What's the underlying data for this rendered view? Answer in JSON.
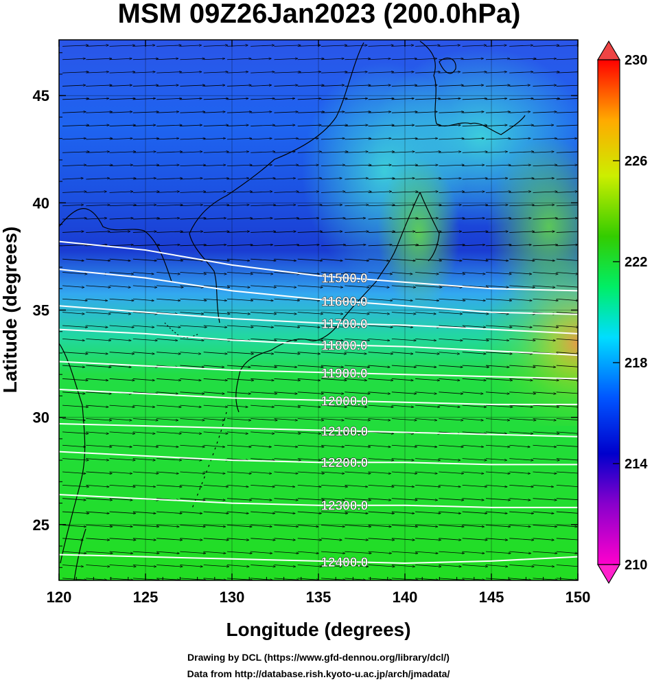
{
  "chart_data": {
    "type": "heatmap",
    "title": "MSM 09Z26Jan2023 (200.0hPa)",
    "xlabel": "Longitude (degrees)",
    "ylabel": "Latitude  (degrees)",
    "xlim": [
      120,
      150
    ],
    "ylim": [
      22.4,
      47.6
    ],
    "x_ticks": [
      120,
      125,
      130,
      135,
      140,
      145,
      150
    ],
    "y_ticks": [
      25,
      30,
      35,
      40,
      45
    ],
    "colorbar": {
      "range": [
        210,
        230
      ],
      "ticks": [
        210,
        214,
        218,
        222,
        226,
        230
      ],
      "colors": [
        "#ff00cc",
        "#8800cc",
        "#0000cc",
        "#0055ff",
        "#00ddff",
        "#00ee55",
        "#33cc00",
        "#ccee00",
        "#ffaa00",
        "#ff0000"
      ]
    },
    "contours": [
      {
        "label": "11500.0",
        "value": 11500,
        "lat_by_lon": [
          [
            120,
            38.2
          ],
          [
            125,
            37.8
          ],
          [
            130,
            37.1
          ],
          [
            135,
            36.6
          ],
          [
            140,
            36.3
          ],
          [
            145,
            36.0
          ],
          [
            150,
            35.9
          ]
        ]
      },
      {
        "label": "11600.0",
        "value": 11600,
        "lat_by_lon": [
          [
            120,
            36.9
          ],
          [
            125,
            36.5
          ],
          [
            130,
            35.9
          ],
          [
            135,
            35.5
          ],
          [
            140,
            35.2
          ],
          [
            145,
            34.9
          ],
          [
            150,
            34.8
          ]
        ]
      },
      {
        "label": "11700.0",
        "value": 11700,
        "lat_by_lon": [
          [
            120,
            35.2
          ],
          [
            125,
            34.9
          ],
          [
            130,
            34.6
          ],
          [
            135,
            34.4
          ],
          [
            140,
            34.3
          ],
          [
            145,
            34.1
          ],
          [
            150,
            33.9
          ]
        ]
      },
      {
        "label": "11800.0",
        "value": 11800,
        "lat_by_lon": [
          [
            120,
            34.1
          ],
          [
            125,
            33.9
          ],
          [
            130,
            33.6
          ],
          [
            135,
            33.4
          ],
          [
            140,
            33.3
          ],
          [
            145,
            33.1
          ],
          [
            150,
            32.9
          ]
        ]
      },
      {
        "label": "11900.0",
        "value": 11900,
        "lat_by_lon": [
          [
            120,
            32.6
          ],
          [
            125,
            32.4
          ],
          [
            130,
            32.2
          ],
          [
            135,
            32.1
          ],
          [
            140,
            32.0
          ],
          [
            145,
            31.9
          ],
          [
            150,
            31.8
          ]
        ]
      },
      {
        "label": "12000.0",
        "value": 12000,
        "lat_by_lon": [
          [
            120,
            31.3
          ],
          [
            125,
            31.1
          ],
          [
            130,
            30.9
          ],
          [
            135,
            30.8
          ],
          [
            140,
            30.7
          ],
          [
            145,
            30.6
          ],
          [
            150,
            30.6
          ]
        ]
      },
      {
        "label": "12100.0",
        "value": 12100,
        "lat_by_lon": [
          [
            120,
            29.7
          ],
          [
            125,
            29.6
          ],
          [
            130,
            29.5
          ],
          [
            135,
            29.4
          ],
          [
            140,
            29.3
          ],
          [
            145,
            29.2
          ],
          [
            150,
            29.1
          ]
        ]
      },
      {
        "label": "12200.0",
        "value": 12200,
        "lat_by_lon": [
          [
            120,
            28.4
          ],
          [
            125,
            28.2
          ],
          [
            130,
            28.0
          ],
          [
            135,
            27.9
          ],
          [
            140,
            27.9
          ],
          [
            145,
            27.8
          ],
          [
            150,
            27.8
          ]
        ]
      },
      {
        "label": "12300.0",
        "value": 12300,
        "lat_by_lon": [
          [
            120,
            26.4
          ],
          [
            125,
            26.2
          ],
          [
            130,
            26.0
          ],
          [
            135,
            25.9
          ],
          [
            140,
            25.9
          ],
          [
            145,
            25.8
          ],
          [
            150,
            25.8
          ]
        ]
      },
      {
        "label": "12400.0",
        "value": 12400,
        "lat_by_lon": [
          [
            120,
            23.6
          ],
          [
            125,
            23.5
          ],
          [
            130,
            23.4
          ],
          [
            135,
            23.3
          ],
          [
            140,
            23.2
          ],
          [
            145,
            23.3
          ],
          [
            150,
            23.5
          ]
        ]
      }
    ],
    "grid": true,
    "vectors": "wind arrows, predominantly westerly (eastward), slightly south-of-east"
  },
  "credits": {
    "line1": "Drawing by DCL (https://www.gfd-dennou.org/library/dcl/)",
    "line2": "Data from http://database.rish.kyoto-u.ac.jp/arch/jmadata/"
  }
}
